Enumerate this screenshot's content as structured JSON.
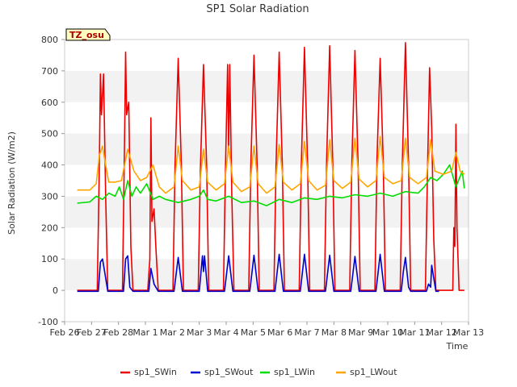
{
  "chart_data": {
    "type": "line",
    "title": "SP1 Solar Radiation",
    "xlabel": "Time",
    "ylabel": "Solar Radiation (W/m2)",
    "badge": "TZ_osu",
    "x_ticks": [
      "Feb 26",
      "Feb 27",
      "Feb 28",
      "Mar 1",
      "Mar 2",
      "Mar 3",
      "Mar 4",
      "Mar 5",
      "Mar 6",
      "Mar 7",
      "Mar 8",
      "Mar 9",
      "Mar 10",
      "Mar 11",
      "Mar 12",
      "Mar 13"
    ],
    "xlim": [
      "2024-02-26",
      "2024-03-13"
    ],
    "ylim": [
      -100,
      800
    ],
    "y_ticks": [
      -100,
      0,
      100,
      200,
      300,
      400,
      500,
      600,
      700,
      800
    ],
    "grid": "horizontal bands",
    "legend_position": "bottom",
    "series": [
      {
        "name": "sp1_SWin",
        "color": "#ee0000",
        "x": [
          "2024-02-26T12:00",
          "2024-02-27T00:00",
          "2024-02-27T07:00",
          "2024-02-27T09:00",
          "2024-02-27T10:00",
          "2024-02-27T11:00",
          "2024-02-27T13:00",
          "2024-02-27T15:00",
          "2024-02-27T17:00",
          "2024-02-28T00:00",
          "2024-02-28T07:00",
          "2024-02-28T09:00",
          "2024-02-28T10:00",
          "2024-02-28T11:00",
          "2024-02-28T13:00",
          "2024-02-28T15:00",
          "2024-02-28T17:00",
          "2024-02-29T00:00",
          "2024-02-29T07:00",
          "2024-02-29T09:00",
          "2024-02-29T10:00",
          "2024-02-29T11:00",
          "2024-02-29T13:00",
          "2024-02-29T15:00",
          "2024-02-29T17:00",
          "2024-03-01T00:00",
          "2024-03-01T07:00",
          "2024-03-01T09:00",
          "2024-03-01T12:00",
          "2024-03-01T15:00",
          "2024-03-01T17:00",
          "2024-03-02T00:00",
          "2024-03-02T07:00",
          "2024-03-02T09:00",
          "2024-03-02T12:00",
          "2024-03-02T15:00",
          "2024-03-02T17:00",
          "2024-03-03T00:00",
          "2024-03-03T07:00",
          "2024-03-03T09:00",
          "2024-03-03T11:00",
          "2024-03-03T12:00",
          "2024-03-03T13:00",
          "2024-03-03T15:00",
          "2024-03-03T17:00",
          "2024-03-04T00:00",
          "2024-03-04T07:00",
          "2024-03-04T09:00",
          "2024-03-04T12:00",
          "2024-03-04T15:00",
          "2024-03-04T17:00",
          "2024-03-05T00:00",
          "2024-03-05T07:00",
          "2024-03-05T09:00",
          "2024-03-05T12:00",
          "2024-03-05T15:00",
          "2024-03-05T17:00",
          "2024-03-06T00:00",
          "2024-03-06T07:00",
          "2024-03-06T09:00",
          "2024-03-06T12:00",
          "2024-03-06T15:00",
          "2024-03-06T17:00",
          "2024-03-07T00:00",
          "2024-03-07T07:00",
          "2024-03-07T09:00",
          "2024-03-07T12:00",
          "2024-03-07T15:00",
          "2024-03-07T17:00",
          "2024-03-08T00:00",
          "2024-03-08T07:00",
          "2024-03-08T09:00",
          "2024-03-08T12:00",
          "2024-03-08T15:00",
          "2024-03-08T17:00",
          "2024-03-09T00:00",
          "2024-03-09T07:00",
          "2024-03-09T09:00",
          "2024-03-09T12:00",
          "2024-03-09T15:00",
          "2024-03-09T17:00",
          "2024-03-10T00:00",
          "2024-03-10T07:00",
          "2024-03-10T09:00",
          "2024-03-10T12:00",
          "2024-03-10T15:00",
          "2024-03-10T17:00",
          "2024-03-11T00:00",
          "2024-03-11T07:00",
          "2024-03-11T09:00",
          "2024-03-11T11:00",
          "2024-03-11T13:00",
          "2024-03-11T15:00",
          "2024-03-11T17:00",
          "2024-03-12T00:00",
          "2024-03-12T07:00",
          "2024-03-12T09:00",
          "2024-03-12T10:00",
          "2024-03-12T11:00",
          "2024-03-12T12:00",
          "2024-03-12T13:00",
          "2024-03-12T15:00",
          "2024-03-12T17:00",
          "2024-03-12T20:00"
        ],
        "y": [
          0,
          0,
          0,
          400,
          690,
          560,
          690,
          300,
          0,
          0,
          0,
          480,
          760,
          560,
          600,
          140,
          0,
          0,
          0,
          100,
          550,
          220,
          260,
          120,
          0,
          0,
          0,
          400,
          740,
          400,
          0,
          0,
          0,
          380,
          720,
          400,
          0,
          0,
          0,
          400,
          720,
          440,
          720,
          300,
          0,
          0,
          0,
          400,
          750,
          400,
          0,
          0,
          0,
          400,
          760,
          400,
          0,
          0,
          0,
          400,
          775,
          400,
          0,
          0,
          0,
          400,
          780,
          400,
          0,
          0,
          0,
          400,
          765,
          400,
          0,
          0,
          0,
          420,
          740,
          400,
          0,
          0,
          0,
          400,
          790,
          400,
          0,
          0,
          0,
          380,
          710,
          520,
          160,
          0,
          0,
          0,
          0,
          200,
          140,
          530,
          200,
          0,
          0,
          0
        ]
      },
      {
        "name": "sp1_SWout",
        "color": "#0000cc",
        "x": [
          "2024-02-26T12:00",
          "2024-02-27T00:00",
          "2024-02-27T08:00",
          "2024-02-27T10:00",
          "2024-02-27T12:00",
          "2024-02-27T14:00",
          "2024-02-27T17:00",
          "2024-02-28T00:00",
          "2024-02-28T08:00",
          "2024-02-28T10:00",
          "2024-02-28T12:00",
          "2024-02-28T14:00",
          "2024-02-28T17:00",
          "2024-02-29T00:00",
          "2024-02-29T08:00",
          "2024-02-29T10:00",
          "2024-02-29T13:00",
          "2024-02-29T17:00",
          "2024-03-01T00:00",
          "2024-03-01T08:00",
          "2024-03-01T12:00",
          "2024-03-01T16:00",
          "2024-03-02T00:00",
          "2024-03-02T08:00",
          "2024-03-02T11:00",
          "2024-03-02T12:00",
          "2024-03-02T13:00",
          "2024-03-02T16:00",
          "2024-03-03T00:00",
          "2024-03-03T08:00",
          "2024-03-03T12:00",
          "2024-03-03T16:00",
          "2024-03-04T00:00",
          "2024-03-04T08:00",
          "2024-03-04T12:00",
          "2024-03-04T16:00",
          "2024-03-05T00:00",
          "2024-03-05T08:00",
          "2024-03-05T12:00",
          "2024-03-05T16:00",
          "2024-03-06T00:00",
          "2024-03-06T08:00",
          "2024-03-06T12:00",
          "2024-03-06T16:00",
          "2024-03-07T00:00",
          "2024-03-07T08:00",
          "2024-03-07T12:00",
          "2024-03-07T16:00",
          "2024-03-08T00:00",
          "2024-03-08T08:00",
          "2024-03-08T12:00",
          "2024-03-08T16:00",
          "2024-03-09T00:00",
          "2024-03-09T08:00",
          "2024-03-09T12:00",
          "2024-03-09T16:00",
          "2024-03-10T00:00",
          "2024-03-10T08:00",
          "2024-03-10T10:00",
          "2024-03-10T12:00",
          "2024-03-10T15:00",
          "2024-03-10T17:00",
          "2024-03-11T00:00",
          "2024-03-11T08:00",
          "2024-03-11T10:00",
          "2024-03-11T12:00",
          "2024-03-11T13:00",
          "2024-03-11T17:00",
          "2024-03-11T20:00"
        ],
        "y": [
          -3,
          -3,
          -3,
          90,
          100,
          60,
          -3,
          -3,
          -3,
          100,
          110,
          10,
          -3,
          -3,
          -3,
          70,
          20,
          -3,
          -3,
          -3,
          105,
          -3,
          -3,
          -3,
          110,
          60,
          110,
          -3,
          -3,
          -3,
          110,
          -3,
          -3,
          -3,
          112,
          -3,
          -3,
          -3,
          115,
          -3,
          -3,
          -3,
          115,
          -3,
          -3,
          -3,
          112,
          -3,
          -3,
          -3,
          108,
          -3,
          -3,
          -3,
          115,
          -3,
          -3,
          -3,
          60,
          105,
          10,
          -3,
          -3,
          -3,
          20,
          10,
          80,
          -3,
          -3
        ]
      },
      {
        "name": "sp1_LWin",
        "color": "#00dd00",
        "x": [
          "2024-02-26T12:00",
          "2024-02-27T00:00",
          "2024-02-27T06:00",
          "2024-02-27T12:00",
          "2024-02-27T18:00",
          "2024-02-28T00:00",
          "2024-02-28T04:00",
          "2024-02-28T08:00",
          "2024-02-28T12:00",
          "2024-02-28T16:00",
          "2024-02-28T20:00",
          "2024-02-29T00:00",
          "2024-02-29T06:00",
          "2024-02-29T12:00",
          "2024-02-29T18:00",
          "2024-03-01T00:00",
          "2024-03-01T12:00",
          "2024-03-02T00:00",
          "2024-03-02T08:00",
          "2024-03-02T12:00",
          "2024-03-02T16:00",
          "2024-03-03T00:00",
          "2024-03-03T12:00",
          "2024-03-04T00:00",
          "2024-03-04T12:00",
          "2024-03-05T00:00",
          "2024-03-05T12:00",
          "2024-03-06T00:00",
          "2024-03-06T12:00",
          "2024-03-07T00:00",
          "2024-03-07T12:00",
          "2024-03-08T00:00",
          "2024-03-08T12:00",
          "2024-03-09T00:00",
          "2024-03-09T12:00",
          "2024-03-10T00:00",
          "2024-03-10T12:00",
          "2024-03-11T00:00",
          "2024-03-11T06:00",
          "2024-03-11T12:00",
          "2024-03-11T18:00",
          "2024-03-12T00:00",
          "2024-03-12T06:00",
          "2024-03-12T12:00",
          "2024-03-12T18:00",
          "2024-03-12T20:00"
        ],
        "y": [
          278,
          282,
          300,
          290,
          310,
          300,
          330,
          290,
          350,
          300,
          330,
          310,
          340,
          290,
          300,
          290,
          280,
          290,
          300,
          320,
          290,
          285,
          300,
          280,
          285,
          270,
          290,
          280,
          295,
          290,
          300,
          295,
          305,
          300,
          310,
          300,
          315,
          310,
          330,
          360,
          350,
          370,
          400,
          330,
          380,
          325
        ]
      },
      {
        "name": "sp1_LWout",
        "color": "#ffa500",
        "x": [
          "2024-02-26T12:00",
          "2024-02-27T00:00",
          "2024-02-27T06:00",
          "2024-02-27T09:00",
          "2024-02-27T12:00",
          "2024-02-27T15:00",
          "2024-02-27T18:00",
          "2024-02-28T00:00",
          "2024-02-28T06:00",
          "2024-02-28T12:00",
          "2024-02-28T18:00",
          "2024-02-29T00:00",
          "2024-02-29T06:00",
          "2024-02-29T12:00",
          "2024-02-29T18:00",
          "2024-03-01T00:00",
          "2024-03-01T08:00",
          "2024-03-01T12:00",
          "2024-03-01T16:00",
          "2024-03-02T00:00",
          "2024-03-02T08:00",
          "2024-03-02T12:00",
          "2024-03-02T16:00",
          "2024-03-03T00:00",
          "2024-03-03T08:00",
          "2024-03-03T12:00",
          "2024-03-03T16:00",
          "2024-03-04T00:00",
          "2024-03-04T08:00",
          "2024-03-04T12:00",
          "2024-03-04T16:00",
          "2024-03-05T00:00",
          "2024-03-05T08:00",
          "2024-03-05T12:00",
          "2024-03-05T16:00",
          "2024-03-06T00:00",
          "2024-03-06T08:00",
          "2024-03-06T12:00",
          "2024-03-06T16:00",
          "2024-03-07T00:00",
          "2024-03-07T08:00",
          "2024-03-07T12:00",
          "2024-03-07T16:00",
          "2024-03-08T00:00",
          "2024-03-08T08:00",
          "2024-03-08T12:00",
          "2024-03-08T16:00",
          "2024-03-09T00:00",
          "2024-03-09T08:00",
          "2024-03-09T12:00",
          "2024-03-09T16:00",
          "2024-03-10T00:00",
          "2024-03-10T08:00",
          "2024-03-10T12:00",
          "2024-03-10T16:00",
          "2024-03-11T00:00",
          "2024-03-11T08:00",
          "2024-03-11T12:00",
          "2024-03-11T16:00",
          "2024-03-12T00:00",
          "2024-03-12T08:00",
          "2024-03-12T12:00",
          "2024-03-12T16:00",
          "2024-03-12T20:00"
        ],
        "y": [
          320,
          320,
          340,
          430,
          460,
          400,
          345,
          345,
          350,
          450,
          380,
          350,
          360,
          400,
          330,
          310,
          330,
          460,
          350,
          320,
          330,
          450,
          345,
          320,
          340,
          460,
          345,
          315,
          330,
          460,
          340,
          310,
          330,
          465,
          345,
          320,
          340,
          475,
          350,
          320,
          335,
          480,
          350,
          325,
          345,
          485,
          355,
          330,
          350,
          490,
          360,
          340,
          350,
          485,
          360,
          340,
          360,
          480,
          380,
          370,
          380,
          440,
          380,
          370
        ]
      }
    ]
  }
}
